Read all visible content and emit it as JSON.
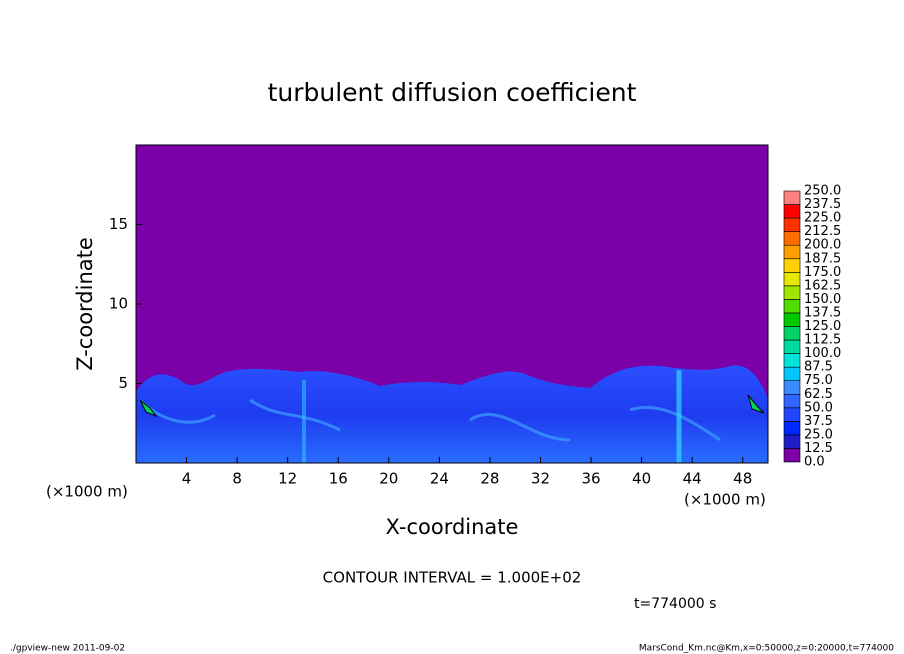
{
  "chart_data": {
    "type": "contour",
    "title": "turbulent diffusion coefficient",
    "xlabel": "X-coordinate",
    "ylabel": "Z-coordinate",
    "xunit": "(×1000 m)",
    "yunit": "(×1000 m)",
    "xlim": [
      0,
      50
    ],
    "xticks": [
      4,
      8,
      12,
      16,
      20,
      24,
      28,
      32,
      36,
      40,
      44,
      48
    ],
    "ylim": [
      0,
      20
    ],
    "yticks": [
      5,
      10,
      15
    ],
    "levels": [
      {
        "value": 0,
        "label": "0.0"
      },
      {
        "value": 12.5,
        "label": "12.5"
      },
      {
        "value": 25,
        "label": "25.0"
      },
      {
        "value": 37.5,
        "label": "37.5"
      },
      {
        "value": 50,
        "label": "50.0"
      },
      {
        "value": 62.5,
        "label": "62.5"
      },
      {
        "value": 75,
        "label": "75.0"
      },
      {
        "value": 87.5,
        "label": "87.5"
      },
      {
        "value": 100,
        "label": "100.0"
      },
      {
        "value": 112.5,
        "label": "112.5"
      },
      {
        "value": 125,
        "label": "125.0"
      },
      {
        "value": 137.5,
        "label": "137.5"
      },
      {
        "value": 150,
        "label": "150.0"
      },
      {
        "value": 162.5,
        "label": "162.5"
      },
      {
        "value": 175,
        "label": "175.0"
      },
      {
        "value": 187.5,
        "label": "187.5"
      },
      {
        "value": 200,
        "label": "200.0"
      },
      {
        "value": 212.5,
        "label": "212.5"
      },
      {
        "value": 225,
        "label": "225.0"
      },
      {
        "value": 237.5,
        "label": "237.5"
      },
      {
        "value": 250,
        "label": "250.0"
      }
    ],
    "colors": [
      "#7b00a8",
      "#1e1ec8",
      "#0028ff",
      "#2046ff",
      "#3264ff",
      "#3c8cff",
      "#00c8ff",
      "#00e6dc",
      "#00dca0",
      "#00d264",
      "#00c800",
      "#50dc00",
      "#a0e600",
      "#e6e600",
      "#ffd200",
      "#ffa000",
      "#ff6e00",
      "#ff3200",
      "#ff0000",
      "#ff8080"
    ],
    "contour_interval": "CONTOUR INTERVAL = 1.000E+02",
    "time": "t=774000 s",
    "footer_left": "./gpview-new  2011-09-02",
    "footer_right": "MarsCond_Km.nc@Km,x=0:50000,z=0:20000,t=774000"
  }
}
